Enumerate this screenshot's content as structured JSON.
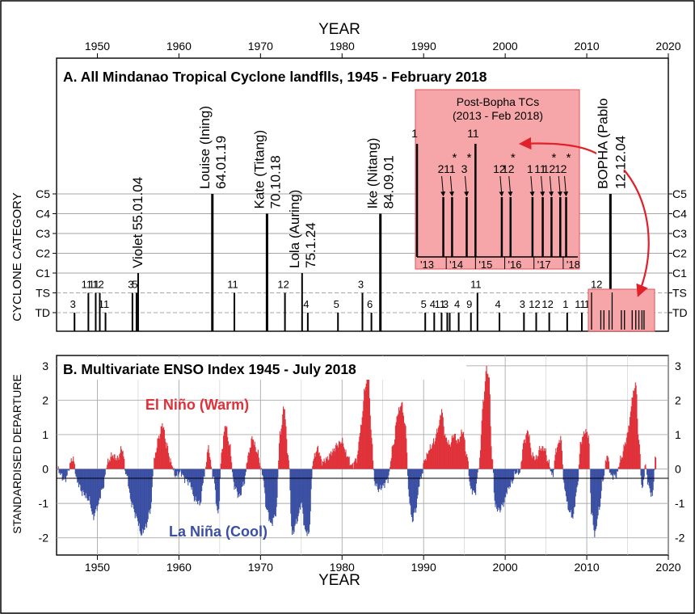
{
  "chart_data": [
    {
      "type": "bar",
      "title": "A. All Mindanao Tropical Cyclone landflls, 1945 - February 2018",
      "xlabel": "YEAR",
      "ylabel": "CYCLONE CATEGORY",
      "xlim": [
        1945,
        2020
      ],
      "x_ticks": [
        "1950",
        "1960",
        "1970",
        "1980",
        "1990",
        "2000",
        "2010",
        "2020"
      ],
      "categories": [
        "TD",
        "TS",
        "C1",
        "C2",
        "C3",
        "C4",
        "C5"
      ],
      "events": [
        {
          "year": 1947.2,
          "level": 1,
          "label": "3"
        },
        {
          "year": 1948.9,
          "level": 2,
          "label": "11"
        },
        {
          "year": 1949.8,
          "level": 2,
          "label": "11"
        },
        {
          "year": 1950.3,
          "level": 2,
          "label": "12"
        },
        {
          "year": 1951.0,
          "level": 1,
          "label": "11"
        },
        {
          "year": 1954.3,
          "level": 2,
          "label": "3"
        },
        {
          "year": 1954.8,
          "level": 2,
          "label": "5"
        },
        {
          "year": 1955.0,
          "level": 3,
          "label": "Violet 55.01.04"
        },
        {
          "year": 1964.1,
          "level": 7,
          "label": "Louise (Ining) 64.01.19"
        },
        {
          "year": 1966.8,
          "level": 2,
          "label": "11"
        },
        {
          "year": 1970.8,
          "level": 6,
          "label": "Kate (Titang) 70.10.18"
        },
        {
          "year": 1973.0,
          "level": 2,
          "label": "12"
        },
        {
          "year": 1975.1,
          "level": 3,
          "label": "Lola (Auring) 75.1.24"
        },
        {
          "year": 1975.8,
          "level": 1,
          "label": "4"
        },
        {
          "year": 1979.5,
          "level": 1,
          "label": "5"
        },
        {
          "year": 1982.5,
          "level": 2,
          "label": "3"
        },
        {
          "year": 1983.6,
          "level": 1,
          "label": "6"
        },
        {
          "year": 1984.7,
          "level": 6,
          "label": "Ike (Nitang) 84.09.01"
        },
        {
          "year": 1990.2,
          "level": 1,
          "label": "5"
        },
        {
          "year": 1991.3,
          "level": 1,
          "label": "4"
        },
        {
          "year": 1992.2,
          "level": 1,
          "label": "11"
        },
        {
          "year": 1992.9,
          "level": 1,
          "label": "3"
        },
        {
          "year": 1993.2,
          "level": 1,
          "label": ""
        },
        {
          "year": 1994.3,
          "level": 1,
          "label": "4"
        },
        {
          "year": 1995.8,
          "level": 1,
          "label": "9"
        },
        {
          "year": 1996.6,
          "level": 2,
          "label": "11"
        },
        {
          "year": 1999.3,
          "level": 1,
          "label": "4"
        },
        {
          "year": 2002.3,
          "level": 1,
          "label": "3"
        },
        {
          "year": 2003.8,
          "level": 1,
          "label": "12"
        },
        {
          "year": 2005.4,
          "level": 1,
          "label": "12"
        },
        {
          "year": 2007.6,
          "level": 1,
          "label": "1"
        },
        {
          "year": 2009.4,
          "level": 1,
          "label": "11"
        },
        {
          "year": 2010.6,
          "level": 1,
          "label": "10"
        },
        {
          "year": 2011.0,
          "level": 1,
          "label": ""
        },
        {
          "year": 2011.4,
          "level": 2,
          "label": "12"
        },
        {
          "year": 2012.9,
          "level": 7,
          "label": "BOPHA (Pablo 12.12.04"
        }
      ],
      "inset": {
        "title": "Post-Bopha TCs",
        "subtitle": "(2013 - Feb 2018)",
        "year_labels": [
          "'13",
          "'14",
          "'15",
          "'16",
          "'17",
          "'18"
        ],
        "events": [
          {
            "year": 2013.0,
            "level": 7,
            "label": "1",
            "star": false
          },
          {
            "year": 2013.9,
            "level": 5,
            "label": "2",
            "star": false
          },
          {
            "year": 2014.2,
            "level": 5,
            "label": "11",
            "star": true
          },
          {
            "year": 2014.7,
            "level": 5,
            "label": "3",
            "star": true
          },
          {
            "year": 2015.0,
            "level": 7,
            "label": "11",
            "star": false
          },
          {
            "year": 2015.9,
            "level": 5,
            "label": "12",
            "star": false
          },
          {
            "year": 2016.2,
            "level": 5,
            "label": "12",
            "star": true
          },
          {
            "year": 2016.95,
            "level": 5,
            "label": "1",
            "star": false
          },
          {
            "year": 2017.3,
            "level": 5,
            "label": "11",
            "star": false
          },
          {
            "year": 2017.6,
            "level": 5,
            "label": "12",
            "star": true
          },
          {
            "year": 2017.9,
            "level": 5,
            "label": "1",
            "star": false
          },
          {
            "year": 2018.1,
            "level": 5,
            "label": "2",
            "star": true
          }
        ]
      }
    },
    {
      "type": "area",
      "title": "B. Multivariate ENSO Index 1945 - July 2018",
      "xlabel": "YEAR",
      "ylabel": "STANDARDISED DEPARTURE",
      "xlim": [
        1945,
        2020
      ],
      "ylim": [
        -2.5,
        3.3
      ],
      "x_ticks": [
        "1950",
        "1960",
        "1970",
        "1980",
        "1990",
        "2000",
        "2010",
        "2020"
      ],
      "y_ticks": [
        "3",
        "2",
        "1",
        "0",
        "-1",
        "-2"
      ],
      "annotations": {
        "warm": "El Niño (Warm)",
        "cool": "La Niña (Cool)"
      },
      "colors": {
        "warm": "#e03039",
        "cool": "#3a4fa3"
      },
      "x": [
        1945.0,
        1946.0,
        1947.0,
        1947.6,
        1948.2,
        1949.0,
        1949.5,
        1950.0,
        1950.6,
        1951.3,
        1951.8,
        1952.5,
        1953.0,
        1953.6,
        1954.2,
        1954.8,
        1955.4,
        1955.9,
        1956.5,
        1957.0,
        1957.5,
        1958.0,
        1958.5,
        1959.0,
        1959.6,
        1960.2,
        1960.8,
        1961.3,
        1962.0,
        1962.6,
        1963.1,
        1963.6,
        1964.2,
        1964.8,
        1965.3,
        1965.7,
        1966.2,
        1966.8,
        1967.4,
        1968.0,
        1968.5,
        1969.0,
        1969.6,
        1970.2,
        1970.8,
        1971.3,
        1971.9,
        1972.4,
        1972.9,
        1973.4,
        1973.9,
        1974.5,
        1975.0,
        1975.5,
        1975.9,
        1976.5,
        1977.0,
        1977.6,
        1978.2,
        1978.8,
        1979.4,
        1980.0,
        1980.6,
        1981.2,
        1981.8,
        1982.3,
        1982.8,
        1983.2,
        1983.6,
        1984.0,
        1984.5,
        1985.0,
        1985.6,
        1986.3,
        1986.8,
        1987.3,
        1987.8,
        1988.2,
        1988.6,
        1989.0,
        1989.6,
        1990.2,
        1990.8,
        1991.3,
        1991.8,
        1992.2,
        1992.7,
        1993.2,
        1993.7,
        1994.2,
        1994.8,
        1995.3,
        1995.8,
        1996.3,
        1996.8,
        1997.3,
        1997.7,
        1998.0,
        1998.4,
        1998.8,
        1999.3,
        1999.8,
        2000.3,
        2000.8,
        2001.3,
        2001.8,
        2002.3,
        2002.8,
        2003.3,
        2003.8,
        2004.3,
        2004.8,
        2005.3,
        2005.8,
        2006.3,
        2006.8,
        2007.3,
        2007.8,
        2008.3,
        2008.8,
        2009.3,
        2009.8,
        2010.2,
        2010.6,
        2011.0,
        2011.5,
        2012.0,
        2012.5,
        2013.0,
        2013.6,
        2014.2,
        2014.8,
        2015.2,
        2015.6,
        2016.0,
        2016.4,
        2016.8,
        2017.2,
        2017.6,
        2018.0,
        2018.5
      ],
      "y": [
        0.0,
        -0.3,
        0.3,
        -0.4,
        -0.7,
        -0.9,
        -1.4,
        -1.1,
        -0.6,
        0.2,
        0.4,
        0.3,
        0.6,
        -0.2,
        -1.0,
        -1.4,
        -1.9,
        -1.7,
        -1.2,
        0.3,
        0.9,
        1.3,
        0.7,
        0.2,
        -0.2,
        -0.1,
        -0.3,
        -0.4,
        -0.9,
        -1.0,
        -0.2,
        0.6,
        -0.2,
        -1.3,
        0.6,
        1.3,
        0.7,
        -0.5,
        -0.8,
        -0.4,
        0.4,
        0.9,
        0.5,
        -0.1,
        -1.2,
        -1.6,
        -1.3,
        1.0,
        1.8,
        0.4,
        -1.9,
        -1.5,
        -1.0,
        -1.8,
        -1.9,
        0.3,
        0.6,
        0.2,
        0.3,
        0.5,
        0.7,
        0.8,
        0.4,
        0.1,
        0.3,
        1.2,
        2.3,
        3.0,
        1.0,
        -0.4,
        -0.6,
        -0.5,
        -0.3,
        0.7,
        1.6,
        1.9,
        1.2,
        -0.8,
        -1.5,
        -1.2,
        -0.3,
        0.3,
        0.6,
        0.8,
        1.2,
        1.7,
        0.9,
        0.7,
        1.0,
        0.8,
        1.1,
        0.4,
        -0.6,
        -0.7,
        0.1,
        1.9,
        2.9,
        2.7,
        0.3,
        -1.1,
        -1.2,
        -1.0,
        -0.6,
        -0.4,
        -0.1,
        -0.1,
        0.8,
        1.1,
        0.4,
        0.3,
        0.6,
        0.6,
        0.2,
        -0.2,
        0.6,
        0.9,
        -0.6,
        -1.2,
        -1.4,
        -0.6,
        0.8,
        1.1,
        1.0,
        -1.3,
        -1.9,
        -1.2,
        -0.3,
        0.4,
        -0.2,
        -0.2,
        0.3,
        0.8,
        1.3,
        2.1,
        2.5,
        0.8,
        -0.6,
        0.1,
        -0.5,
        -0.8,
        0.4
      ]
    }
  ]
}
